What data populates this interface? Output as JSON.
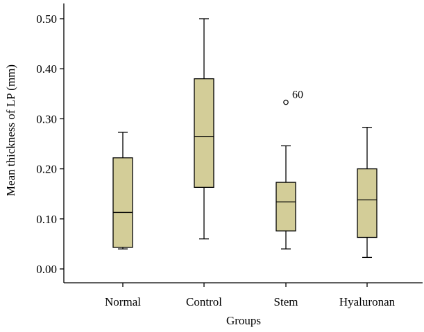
{
  "chart_data": {
    "type": "boxplot",
    "title": "",
    "xlabel": "Groups",
    "ylabel": "Mean thickness of LP (mm)",
    "ylim": [
      -0.035,
      0.52
    ],
    "yticks": [
      "0.00",
      "0.10",
      "0.20",
      "0.30",
      "0.40",
      "0.50"
    ],
    "categories": [
      "Normal",
      "Control",
      "Stem",
      "Hyaluronan"
    ],
    "box_color": "#d3cd98",
    "boxes": [
      {
        "min": 0.04,
        "q1": 0.043,
        "median": 0.113,
        "q3": 0.222,
        "max": 0.273,
        "outliers": []
      },
      {
        "min": 0.06,
        "q1": 0.163,
        "median": 0.265,
        "q3": 0.38,
        "max": 0.5,
        "outliers": []
      },
      {
        "min": 0.04,
        "q1": 0.076,
        "median": 0.134,
        "q3": 0.173,
        "max": 0.246,
        "outliers": [
          {
            "value": 0.333,
            "label": "60"
          }
        ]
      },
      {
        "min": 0.023,
        "q1": 0.063,
        "median": 0.138,
        "q3": 0.2,
        "max": 0.283,
        "outliers": []
      }
    ]
  }
}
